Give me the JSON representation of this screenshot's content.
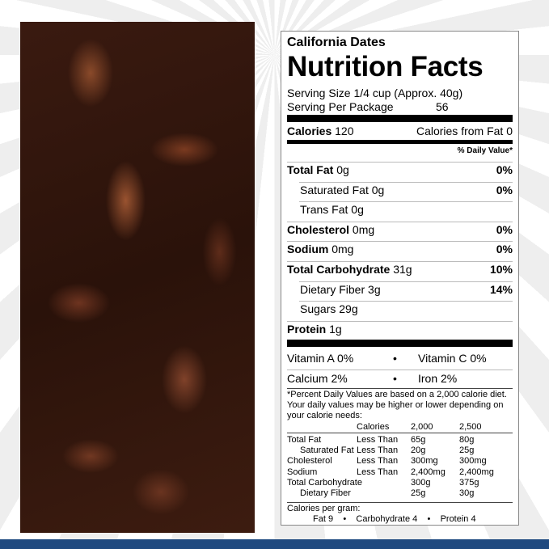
{
  "label": {
    "brand": "California Dates",
    "title": "Nutrition Facts",
    "serving_size": "Serving Size 1/4 cup (Approx. 40g)",
    "servings_label": "Serving Per Package",
    "servings_value": "56",
    "calories_label": "Calories",
    "calories_value": "120",
    "calories_fat": "Calories from Fat 0",
    "dv_header": "% Daily Value*",
    "nutrients": [
      {
        "name": "Total Fat",
        "amount": "0g",
        "dv": "0%",
        "bold": true,
        "indent": false
      },
      {
        "name": "Saturated Fat",
        "amount": "0g",
        "dv": "0%",
        "bold": false,
        "indent": true
      },
      {
        "name": "Trans Fat",
        "amount": "0g",
        "dv": "",
        "bold": false,
        "indent": true
      },
      {
        "name": "Cholesterol",
        "amount": "0mg",
        "dv": "0%",
        "bold": true,
        "indent": false
      },
      {
        "name": "Sodium",
        "amount": "0mg",
        "dv": "0%",
        "bold": true,
        "indent": false
      },
      {
        "name": "Total Carbohydrate",
        "amount": "31g",
        "dv": "10%",
        "bold": true,
        "indent": false
      },
      {
        "name": "Dietary Fiber",
        "amount": "3g",
        "dv": "14%",
        "bold": false,
        "indent": true
      },
      {
        "name": "Sugars",
        "amount": "29g",
        "dv": "",
        "bold": false,
        "indent": true
      },
      {
        "name": "Protein",
        "amount": "1g",
        "dv": "",
        "bold": true,
        "indent": false
      }
    ],
    "vitamins": [
      [
        "Vitamin A 0%",
        "Vitamin C 0%"
      ],
      [
        "Calcium 2%",
        "Iron 2%"
      ]
    ],
    "bullet": "•",
    "footnote": "*Percent Daily Values are based on a 2,000 calorie diet. Your daily values may be higher or lower depending on your calorie needs:",
    "table_header": [
      "",
      "Calories",
      "2,000",
      "2,500"
    ],
    "table_rows": [
      [
        "Total Fat",
        "Less Than",
        "65g",
        "80g"
      ],
      [
        "Saturated Fat",
        "Less Than",
        "20g",
        "25g"
      ],
      [
        "Cholesterol",
        "Less Than",
        "300mg",
        "300mg"
      ],
      [
        "Sodium",
        "Less Than",
        "2,400mg",
        "2,400mg"
      ],
      [
        "Total Carbohydrate",
        "",
        "300g",
        "375g"
      ],
      [
        "Dietary Fiber",
        "",
        "25g",
        "30g"
      ]
    ],
    "cal_per_gram": "Calories per gram:",
    "cal_per_gram_items": [
      "Fat 9",
      "Carbohydrate 4",
      "Protein 4"
    ]
  },
  "colors": {
    "footer_bar": "#1f4a80"
  }
}
